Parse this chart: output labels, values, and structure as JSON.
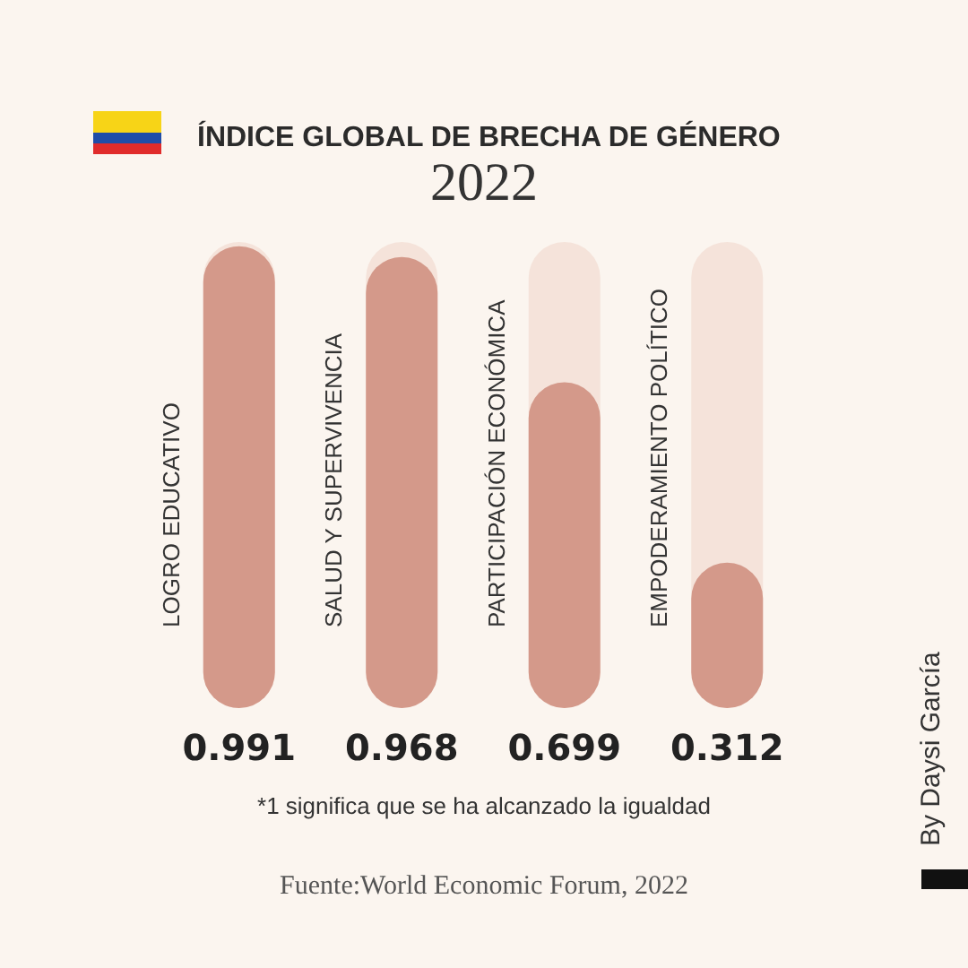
{
  "chart_data": {
    "type": "bar",
    "title": "ÍNDICE GLOBAL DE BRECHA DE GÉNERO",
    "subtitle": "2022",
    "categories": [
      "LOGRO EDUCATIVO",
      "SALUD Y SUPERVIVENCIA",
      "PARTICIPACIÓN ECONÓMICA",
      "EMPODERAMIENTO POLÍTICO"
    ],
    "values": [
      0.991,
      0.968,
      0.699,
      0.312
    ],
    "color": "#d4998a",
    "ylim": [
      0,
      1
    ],
    "data_labels": true,
    "annotations": [
      "*1 significa que se ha alcanzado la igualdad",
      "Fuente:World Economic Forum, 2022",
      "By Daysi García"
    ]
  }
}
